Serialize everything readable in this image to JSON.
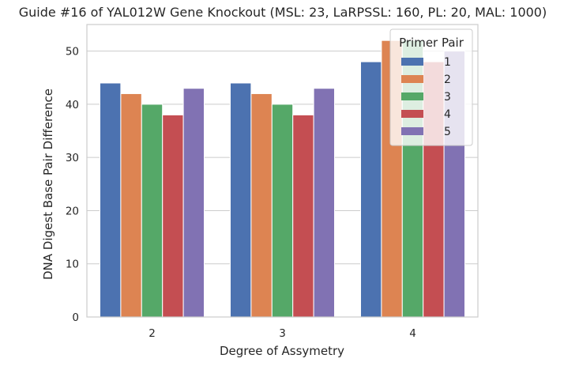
{
  "chart_data": {
    "type": "bar",
    "title": "Guide #16 of YAL012W Gene Knockout (MSL: 23, LaRPSSL: 160, PL: 20, MAL: 1000)",
    "xlabel": "Degree of Assymetry",
    "ylabel": "DNA Digest Base Pair Difference",
    "categories": [
      "2",
      "3",
      "4"
    ],
    "ylim": [
      0,
      55
    ],
    "yticks": [
      0,
      10,
      20,
      30,
      40,
      50
    ],
    "grid": "horizontal",
    "legend": {
      "title": "Primer Pair",
      "placement": "top-right"
    },
    "series": [
      {
        "name": "1",
        "color": "#4c72b0",
        "values": [
          44,
          44,
          48
        ]
      },
      {
        "name": "2",
        "color": "#dd8452",
        "values": [
          42,
          42,
          52
        ]
      },
      {
        "name": "3",
        "color": "#55a868",
        "values": [
          40,
          40,
          52
        ]
      },
      {
        "name": "4",
        "color": "#c44e52",
        "values": [
          38,
          38,
          48
        ]
      },
      {
        "name": "5",
        "color": "#8172b3",
        "values": [
          43,
          43,
          50
        ]
      }
    ]
  }
}
